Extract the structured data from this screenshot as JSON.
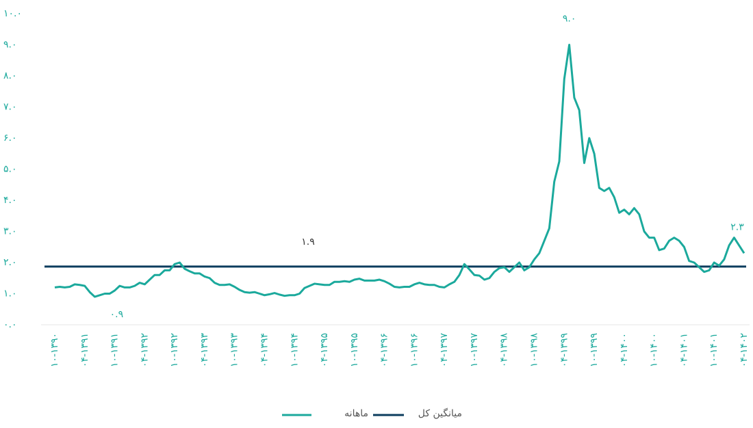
{
  "chart_data": {
    "type": "line",
    "ylim": [
      0,
      10
    ],
    "yticks": [
      {
        "value": 0,
        "label": "۰.۰"
      },
      {
        "value": 1,
        "label": "۱.۰"
      },
      {
        "value": 2,
        "label": "۲.۰"
      },
      {
        "value": 3,
        "label": "۳.۰"
      },
      {
        "value": 4,
        "label": "۴.۰"
      },
      {
        "value": 5,
        "label": "۵.۰"
      },
      {
        "value": 6,
        "label": "۶.۰"
      },
      {
        "value": 7,
        "label": "۷.۰"
      },
      {
        "value": 8,
        "label": "۸.۰"
      },
      {
        "value": 9,
        "label": "۹.۰"
      },
      {
        "value": 10,
        "label": "۱۰.۰"
      }
    ],
    "grid": false,
    "categories": [
      "۱۰-۱۳۹۰",
      null,
      null,
      null,
      null,
      null,
      "۰۴-۱۳۹۱",
      null,
      null,
      null,
      null,
      null,
      "۱۰-۱۳۹۱",
      null,
      null,
      null,
      null,
      null,
      "۰۴-۱۳۹۲",
      null,
      null,
      null,
      null,
      null,
      "۱۰-۱۳۹۲",
      null,
      null,
      null,
      null,
      null,
      "۰۴-۱۳۹۳",
      null,
      null,
      null,
      null,
      null,
      "۱۰-۱۳۹۳",
      null,
      null,
      null,
      null,
      null,
      "۰۴-۱۳۹۴",
      null,
      null,
      null,
      null,
      null,
      "۱۰-۱۳۹۴",
      null,
      null,
      null,
      null,
      null,
      "۰۴-۱۳۹۵",
      null,
      null,
      null,
      null,
      null,
      "۱۰-۱۳۹۵",
      null,
      null,
      null,
      null,
      null,
      "۰۴-۱۳۹۶",
      null,
      null,
      null,
      null,
      null,
      "۱۰-۱۳۹۶",
      null,
      null,
      null,
      null,
      null,
      "۰۴-۱۳۹۷",
      null,
      null,
      null,
      null,
      null,
      "۱۰-۱۳۹۷",
      null,
      null,
      null,
      null,
      null,
      "۰۴-۱۳۹۸",
      null,
      null,
      null,
      null,
      null,
      "۱۰-۱۳۹۸",
      null,
      null,
      null,
      null,
      null,
      "۰۴-۱۳۹۹",
      null,
      null,
      null,
      null,
      null,
      "۱۰-۱۳۹۹",
      null,
      null,
      null,
      null,
      null,
      "۰۴-۱۴۰۰",
      null,
      null,
      null,
      null,
      null,
      "۱۰-۱۴۰۰",
      null,
      null,
      null,
      null,
      null,
      "۰۴-۱۴۰۱",
      null,
      null,
      null,
      null,
      null,
      "۱۰-۱۴۰۱",
      null,
      null,
      null,
      null,
      null,
      "۰۴-۱۴۰۲"
    ],
    "series": [
      {
        "name": "ماهانه",
        "color": "#1ba99c",
        "values": [
          1.2,
          1.22,
          1.2,
          1.22,
          1.3,
          1.28,
          1.25,
          1.05,
          0.9,
          0.95,
          1.0,
          1.0,
          1.1,
          1.25,
          1.2,
          1.2,
          1.25,
          1.35,
          1.3,
          1.45,
          1.6,
          1.6,
          1.75,
          1.75,
          1.95,
          2.0,
          1.8,
          1.72,
          1.65,
          1.65,
          1.55,
          1.5,
          1.35,
          1.28,
          1.28,
          1.3,
          1.22,
          1.12,
          1.05,
          1.03,
          1.05,
          1.0,
          0.95,
          0.98,
          1.02,
          0.97,
          0.93,
          0.95,
          0.95,
          1.0,
          1.18,
          1.25,
          1.32,
          1.3,
          1.28,
          1.28,
          1.38,
          1.38,
          1.4,
          1.38,
          1.45,
          1.48,
          1.42,
          1.42,
          1.42,
          1.45,
          1.4,
          1.32,
          1.22,
          1.2,
          1.22,
          1.22,
          1.3,
          1.35,
          1.3,
          1.28,
          1.28,
          1.22,
          1.2,
          1.3,
          1.38,
          1.6,
          1.95,
          1.78,
          1.6,
          1.58,
          1.45,
          1.5,
          1.7,
          1.82,
          1.85,
          1.7,
          1.85,
          2.0,
          1.75,
          1.85,
          2.1,
          2.3,
          2.7,
          3.1,
          4.6,
          5.25,
          7.9,
          9.0,
          7.3,
          6.9,
          5.2,
          6.0,
          5.5,
          4.4,
          4.3,
          4.4,
          4.1,
          3.6,
          3.7,
          3.55,
          3.75,
          3.55,
          3.0,
          2.8,
          2.8,
          2.4,
          2.45,
          2.7,
          2.8,
          2.7,
          2.5,
          2.05,
          2.0,
          1.85,
          1.7,
          1.75,
          2.0,
          1.9,
          2.1,
          2.55,
          2.8,
          2.55,
          2.3
        ],
        "value_labels": [
          null,
          null,
          null,
          null,
          null,
          null,
          null,
          null,
          "۰.۹",
          null,
          null,
          null,
          null,
          null,
          null,
          null,
          null,
          null,
          null,
          null,
          null,
          null,
          null,
          null,
          null,
          null,
          null,
          null,
          null,
          null,
          null,
          null,
          null,
          null,
          null,
          null,
          null,
          null,
          null,
          null,
          null,
          null,
          null,
          null,
          null,
          null,
          null,
          null,
          null,
          null,
          null,
          null,
          null,
          null,
          null,
          null,
          null,
          null,
          null,
          null,
          null,
          null,
          null,
          null,
          null,
          null,
          null,
          null,
          null,
          null,
          null,
          null,
          null,
          null,
          null,
          null,
          null,
          null,
          null,
          null,
          null,
          null,
          null,
          null,
          null,
          null,
          null,
          null,
          null,
          null,
          null,
          null,
          null,
          null,
          null,
          null,
          null,
          null,
          null,
          null,
          null,
          null,
          null,
          "۹.۰",
          null,
          null,
          null,
          null,
          null,
          null,
          null,
          null,
          null,
          null,
          null,
          null,
          null,
          null,
          null,
          null,
          null,
          null,
          null,
          null,
          null,
          null,
          null,
          null,
          null,
          null,
          null,
          null,
          null,
          null,
          null,
          null,
          null,
          null,
          "۲.۳"
        ]
      }
    ],
    "reference_line": {
      "name": "میانگین کل",
      "value": 1.87,
      "label": "۱.۹",
      "color": "#0b3c5d"
    }
  }
}
